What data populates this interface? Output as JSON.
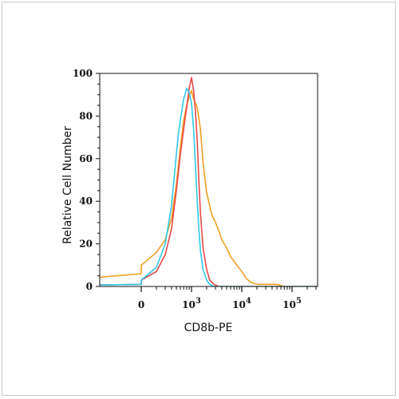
{
  "chart_data": {
    "type": "line",
    "title": "",
    "xlabel": "CD8b-PE",
    "ylabel": "Relative Cell Number",
    "x_scale": "biexponential",
    "xlim": [
      -800,
      400000
    ],
    "ylim": [
      0,
      100
    ],
    "y_ticks": [
      0,
      20,
      40,
      60,
      80,
      100
    ],
    "x_ticks": [
      {
        "value": 0,
        "label": "0",
        "exp": ""
      },
      {
        "value": 1000,
        "label": "10",
        "exp": "3"
      },
      {
        "value": 10000,
        "label": "10",
        "exp": "4"
      },
      {
        "value": 100000,
        "label": "10",
        "exp": "5"
      }
    ],
    "grid": false,
    "legend": "none",
    "series": [
      {
        "color": "#f0a020",
        "x": [
          -800,
          -600,
          -300,
          -100,
          0,
          100,
          200,
          300,
          400,
          500,
          600,
          700,
          800,
          900,
          1000,
          1100,
          1200,
          1300,
          1500,
          1700,
          2000,
          2500,
          3000,
          3500,
          4000,
          5000,
          6000,
          8000,
          10000,
          12000,
          15000,
          20000,
          30000,
          50000,
          70000,
          100000,
          200000,
          400000
        ],
        "values": [
          0,
          1,
          2,
          4,
          6,
          10,
          16,
          22,
          32,
          48,
          65,
          78,
          85,
          89,
          92,
          88,
          86,
          84,
          74,
          58,
          44,
          34,
          30,
          26,
          22,
          18,
          14,
          10,
          7,
          4,
          2,
          1,
          1,
          1,
          0,
          0,
          0,
          0
        ]
      },
      {
        "color": "#e84848",
        "x": [
          -800,
          -300,
          0,
          100,
          200,
          300,
          400,
          500,
          600,
          700,
          800,
          900,
          1000,
          1100,
          1200,
          1300,
          1400,
          1500,
          1700,
          2000,
          2300,
          2800,
          3500,
          5000,
          400000
        ],
        "values": [
          0,
          0,
          1,
          3,
          7,
          15,
          27,
          45,
          62,
          74,
          84,
          93,
          98,
          92,
          82,
          68,
          50,
          35,
          18,
          8,
          3,
          1,
          0,
          0,
          0
        ]
      },
      {
        "color": "#30c8e8",
        "x": [
          -800,
          -300,
          0,
          100,
          200,
          300,
          400,
          500,
          550,
          600,
          700,
          800,
          900,
          1000,
          1100,
          1200,
          1300,
          1400,
          1500,
          1700,
          2000,
          2300,
          2800,
          3500,
          5000,
          400000
        ],
        "values": [
          0,
          0,
          1,
          3,
          9,
          20,
          38,
          62,
          72,
          78,
          88,
          93,
          91,
          86,
          74,
          56,
          40,
          27,
          17,
          8,
          3,
          1,
          0,
          0,
          0,
          0
        ]
      }
    ]
  }
}
